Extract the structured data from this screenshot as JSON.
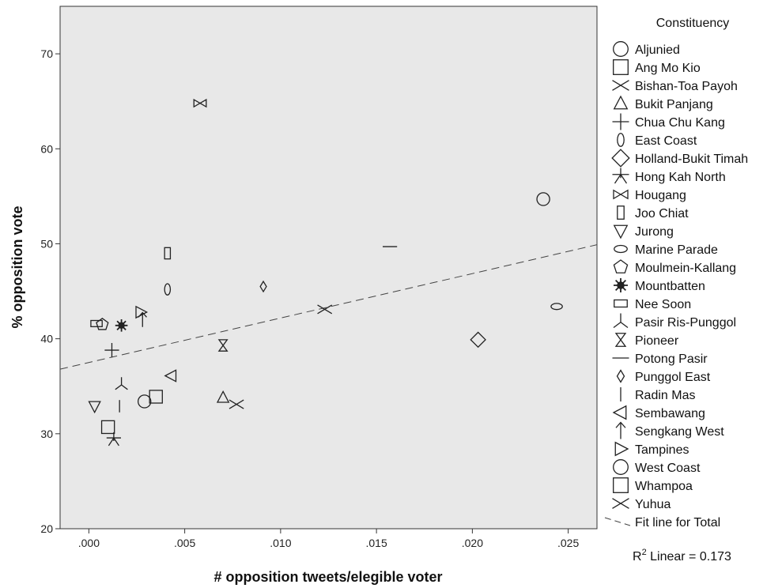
{
  "chart_data": {
    "type": "scatter",
    "xlabel": "# opposition tweets/elegible voter",
    "ylabel": "% opposition vote",
    "xlim": [
      -0.0015,
      0.0265
    ],
    "ylim": [
      20,
      75
    ],
    "x_ticks": [
      0.0,
      0.005,
      0.01,
      0.015,
      0.02,
      0.025
    ],
    "x_tick_labels": [
      ".000",
      ".005",
      ".010",
      ".015",
      ".020",
      ".025"
    ],
    "y_ticks": [
      20,
      30,
      40,
      50,
      60,
      70
    ],
    "y_tick_labels": [
      "20",
      "30",
      "40",
      "50",
      "60",
      "70"
    ],
    "grid": false,
    "legend_title": "Constituency",
    "legend_position": "right",
    "plot_background": "#e8e8e8",
    "points": [
      {
        "name": "Aljunied",
        "marker": "circle",
        "x": 0.0237,
        "y": 54.7
      },
      {
        "name": "Ang Mo Kio",
        "marker": "square",
        "x": 0.0035,
        "y": 33.9
      },
      {
        "name": "Bishan-Toa Payoh",
        "marker": "x",
        "x": 0.0077,
        "y": 33.1
      },
      {
        "name": "Bukit Panjang",
        "marker": "triangle-up",
        "x": 0.007,
        "y": 33.8
      },
      {
        "name": "Chua Chu Kang",
        "marker": "plus",
        "x": 0.0012,
        "y": 38.8
      },
      {
        "name": "East Coast",
        "marker": "ellipse-v",
        "x": 0.0041,
        "y": 45.2
      },
      {
        "name": "Holland-Bukit Timah",
        "marker": "diamond",
        "x": 0.0203,
        "y": 39.9
      },
      {
        "name": "Hong Kah North",
        "marker": "asterisk",
        "x": 0.0013,
        "y": 29.4
      },
      {
        "name": "Hougang",
        "marker": "bowtie",
        "x": 0.0058,
        "y": 64.8
      },
      {
        "name": "Joo Chiat",
        "marker": "rect-tall",
        "x": 0.0041,
        "y": 49.0
      },
      {
        "name": "Jurong",
        "marker": "triangle-down",
        "x": 0.0003,
        "y": 32.9
      },
      {
        "name": "Marine Parade",
        "marker": "ellipse-h",
        "x": 0.0244,
        "y": 43.4
      },
      {
        "name": "Moulmein-Kallang",
        "marker": "pentagon",
        "x": 0.0007,
        "y": 41.5
      },
      {
        "name": "Mountbatten",
        "marker": "star",
        "x": 0.0017,
        "y": 41.4
      },
      {
        "name": "Nee Soon",
        "marker": "rect-wide",
        "x": 0.0004,
        "y": 41.6
      },
      {
        "name": "Pasir Ris-Punggol",
        "marker": "tri-y",
        "x": 0.0017,
        "y": 35.2
      },
      {
        "name": "Pioneer",
        "marker": "hourglass",
        "x": 0.007,
        "y": 39.3
      },
      {
        "name": "Potong Pasir",
        "marker": "hline",
        "x": 0.0157,
        "y": 49.7
      },
      {
        "name": "Punggol East",
        "marker": "diamond-small",
        "x": 0.0091,
        "y": 45.5
      },
      {
        "name": "Radin Mas",
        "marker": "vline",
        "x": 0.0016,
        "y": 32.9
      },
      {
        "name": "Sembawang",
        "marker": "triangle-left",
        "x": 0.0043,
        "y": 36.1
      },
      {
        "name": "Sengkang West",
        "marker": "arrow-up",
        "x": 0.0028,
        "y": 42.0
      },
      {
        "name": "Tampines",
        "marker": "triangle-right",
        "x": 0.0027,
        "y": 42.8
      },
      {
        "name": "West Coast",
        "marker": "circle",
        "x": 0.0029,
        "y": 33.4
      },
      {
        "name": "Whampoa",
        "marker": "square",
        "x": 0.001,
        "y": 30.7
      },
      {
        "name": "Yuhua",
        "marker": "x",
        "x": 0.0123,
        "y": 43.1
      }
    ],
    "fit_line": {
      "label": "Fit line for Total",
      "x": [
        -0.0015,
        0.0265
      ],
      "y": [
        36.8,
        49.9
      ],
      "r2_prefix": "R",
      "r2_sup": "2",
      "r2_suffix": " Linear = 0.173"
    }
  }
}
